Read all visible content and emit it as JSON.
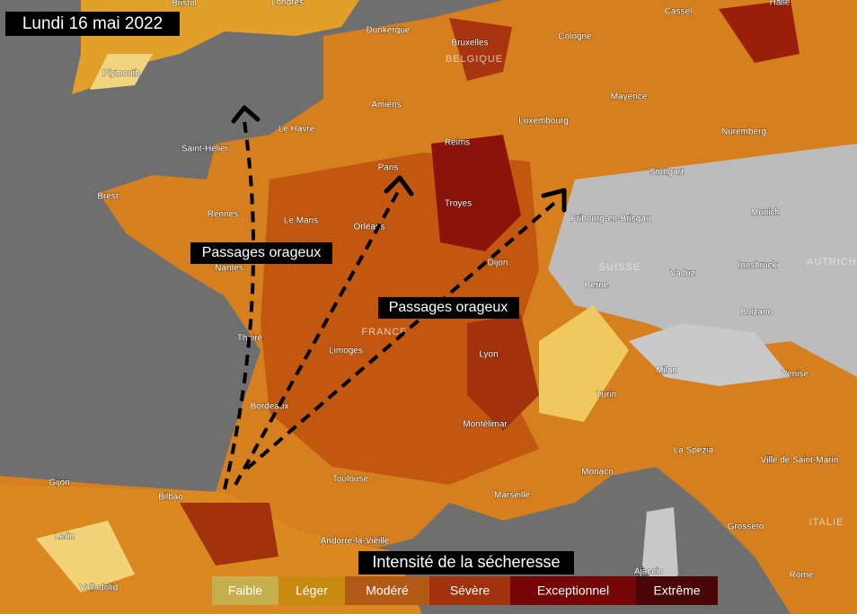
{
  "header": {
    "title": "Lundi 16 mai 2022"
  },
  "annotations": [
    "Passages orageux",
    "Passages orageux"
  ],
  "legend": {
    "title": "Intensité de la sécheresse",
    "items": [
      {
        "label": "Faible",
        "color": "#c6ae4c"
      },
      {
        "label": "Léger",
        "color": "#c98a12"
      },
      {
        "label": "Modéré",
        "color": "#b05a16"
      },
      {
        "label": "Sévère",
        "color": "#a1320c"
      },
      {
        "label": "Exceptionnel",
        "color": "#760606"
      },
      {
        "label": "Extrême",
        "color": "#4a0606"
      }
    ]
  },
  "places": [
    "Bristol",
    "Londres",
    "Plymouth",
    "Dunkerque",
    "Bruxelles",
    "Cologne",
    "Cassel",
    "Halle",
    "Amiens",
    "Le Havre",
    "Saint-Hélier",
    "Reims",
    "Luxembourg",
    "Mayence",
    "Nuremberg",
    "Stuttgart",
    "Paris",
    "Brest",
    "Rennes",
    "Le Mans",
    "Orléans",
    "Troyes",
    "Fribourg-en-Brisgau",
    "Munich",
    "Nantes",
    "Dijon",
    "Vaduz",
    "Innsbruck",
    "Berne",
    "Bolzano",
    "Thairé",
    "Limoges",
    "Lyon",
    "Milan",
    "Venise",
    "Turin",
    "Bordeaux",
    "Montélimar",
    "La Spezia",
    "Ville de Saint-Marin",
    "Monaco",
    "Toulouse",
    "Gijon",
    "Bilbao",
    "Marseille",
    "Grosseto",
    "León",
    "Andorre-la-Vieille",
    "Valladolid",
    "Ajaccio",
    "Rome"
  ],
  "regions": [
    "BELGIQUE",
    "SUISSE",
    "AUTRICHE",
    "FRANCE",
    "ITALIE"
  ]
}
